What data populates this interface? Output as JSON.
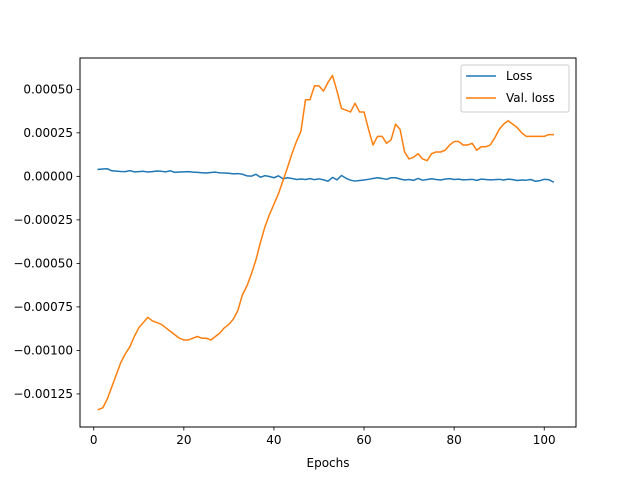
{
  "chart_data": {
    "type": "line",
    "title": "",
    "xlabel": "Epochs",
    "ylabel": "",
    "xlim": [
      -3.05,
      107.05
    ],
    "ylim": [
      -0.00144,
      0.00068
    ],
    "x_ticks": [
      0,
      20,
      40,
      60,
      80,
      100
    ],
    "x_tick_labels": [
      "0",
      "20",
      "40",
      "60",
      "80",
      "100"
    ],
    "y_ticks": [
      -0.00125,
      -0.001,
      -0.00075,
      -0.0005,
      -0.00025,
      0,
      0.00025,
      0.0005
    ],
    "y_tick_labels": [
      "−0.00125",
      "−0.00100",
      "−0.00075",
      "−0.00050",
      "−0.00025",
      "0.00000",
      "0.00025",
      "0.00050"
    ],
    "grid": false,
    "legend_position": "top-right",
    "series": [
      {
        "name": "Loss",
        "color": "#1f77b4",
        "x": [
          1,
          2,
          3,
          4,
          5,
          6,
          7,
          8,
          9,
          10,
          11,
          12,
          13,
          14,
          15,
          16,
          17,
          18,
          19,
          20,
          21,
          22,
          23,
          24,
          25,
          26,
          27,
          28,
          29,
          30,
          31,
          32,
          33,
          34,
          35,
          36,
          37,
          38,
          39,
          40,
          41,
          42,
          43,
          44,
          45,
          46,
          47,
          48,
          49,
          50,
          51,
          52,
          53,
          54,
          55,
          56,
          57,
          58,
          59,
          60,
          61,
          62,
          63,
          64,
          65,
          66,
          67,
          68,
          69,
          70,
          71,
          72,
          73,
          74,
          75,
          76,
          77,
          78,
          79,
          80,
          81,
          82,
          83,
          84,
          85,
          86,
          87,
          88,
          89,
          90,
          91,
          92,
          93,
          94,
          95,
          96,
          97,
          98,
          99,
          100,
          101,
          102
        ],
        "y": [
          4e-05,
          4.2e-05,
          4.4e-05,
          3.2e-05,
          3e-05,
          2.8e-05,
          2.7e-05,
          3.3e-05,
          2.6e-05,
          2.7e-05,
          2.9e-05,
          2.5e-05,
          2.7e-05,
          3.1e-05,
          2.9e-05,
          2.6e-05,
          3.2e-05,
          2.3e-05,
          2.5e-05,
          2.6e-05,
          2.7e-05,
          2.4e-05,
          2.3e-05,
          2.1e-05,
          1.9e-05,
          2.2e-05,
          2.4e-05,
          2e-05,
          1.9e-05,
          1.8e-05,
          1.4e-05,
          1.6e-05,
          1.2e-05,
          3e-06,
          1e-06,
          1.2e-05,
          -5e-06,
          4e-06,
          -1e-06,
          -8e-06,
          3e-06,
          -1.4e-05,
          -8e-06,
          -1.2e-05,
          -1.8e-05,
          -1.5e-05,
          -1.8e-05,
          -1.3e-05,
          -1.9e-05,
          -1.4e-05,
          -2e-05,
          -2.8e-05,
          -6e-06,
          -2e-05,
          5e-06,
          -1.1e-05,
          -2.2e-05,
          -2.7e-05,
          -2.4e-05,
          -2.1e-05,
          -1.7e-05,
          -1.2e-05,
          -8e-06,
          -1.2e-05,
          -1.7e-05,
          -8e-06,
          -8e-06,
          -1.5e-05,
          -2.1e-05,
          -1.8e-05,
          -2.3e-05,
          -1.2e-05,
          -2.2e-05,
          -1.8e-05,
          -1.4e-05,
          -1.8e-05,
          -2.1e-05,
          -1.6e-05,
          -1.3e-05,
          -1.8e-05,
          -1.6e-05,
          -2e-05,
          -1.9e-05,
          -1.7e-05,
          -2.3e-05,
          -1.6e-05,
          -1.8e-05,
          -2e-05,
          -1.9e-05,
          -1.7e-05,
          -2.1e-05,
          -1.6e-05,
          -1.9e-05,
          -2.4e-05,
          -2.1e-05,
          -2.2e-05,
          -1.8e-05,
          -2.8e-05,
          -2.5e-05,
          -1.7e-05,
          -1.9e-05,
          -3.2e-05
        ]
      },
      {
        "name": "Val. loss",
        "color": "#ff7f0e",
        "x": [
          1,
          2,
          3,
          4,
          5,
          6,
          7,
          8,
          9,
          10,
          11,
          12,
          13,
          14,
          15,
          16,
          17,
          18,
          19,
          20,
          21,
          22,
          23,
          24,
          25,
          26,
          27,
          28,
          29,
          30,
          31,
          32,
          33,
          34,
          35,
          36,
          37,
          38,
          39,
          40,
          41,
          42,
          43,
          44,
          45,
          46,
          47,
          48,
          49,
          50,
          51,
          52,
          53,
          54,
          55,
          56,
          57,
          58,
          59,
          60,
          61,
          62,
          63,
          64,
          65,
          66,
          67,
          68,
          69,
          70,
          71,
          72,
          73,
          74,
          75,
          76,
          77,
          78,
          79,
          80,
          81,
          82,
          83,
          84,
          85,
          86,
          87,
          88,
          89,
          90,
          91,
          92,
          93,
          94,
          95,
          96,
          97,
          98,
          99,
          100,
          101,
          102
        ],
        "y": [
          -0.00134,
          -0.00133,
          -0.00128,
          -0.00121,
          -0.00114,
          -0.00107,
          -0.00102,
          -0.00098,
          -0.00092,
          -0.00087,
          -0.00084,
          -0.00081,
          -0.00083,
          -0.00084,
          -0.00085,
          -0.00087,
          -0.00089,
          -0.00091,
          -0.00093,
          -0.00094,
          -0.00094,
          -0.00093,
          -0.00092,
          -0.00093,
          -0.00093,
          -0.00094,
          -0.00092,
          -0.0009,
          -0.00087,
          -0.00085,
          -0.00082,
          -0.00077,
          -0.00068,
          -0.00063,
          -0.00056,
          -0.00048,
          -0.00038,
          -0.00029,
          -0.00022,
          -0.00016,
          -0.0001,
          -2.5e-05,
          5e-05,
          0.00013,
          0.0002,
          0.00026,
          0.00044,
          0.00044,
          0.00052,
          0.00052,
          0.00049,
          0.00054,
          0.00058,
          0.00049,
          0.00039,
          0.00038,
          0.00037,
          0.00042,
          0.00037,
          0.00037,
          0.00027,
          0.00018,
          0.00023,
          0.00023,
          0.00019,
          0.00021,
          0.0003,
          0.00027,
          0.00014,
          0.0001,
          0.00011,
          0.00013,
          0.0001,
          9e-05,
          0.00013,
          0.00014,
          0.00014,
          0.00015,
          0.00018,
          0.0002,
          0.0002,
          0.00018,
          0.00018,
          0.00019,
          0.00015,
          0.00017,
          0.00017,
          0.00018,
          0.00022,
          0.00027,
          0.0003,
          0.00032,
          0.0003,
          0.00028,
          0.00025,
          0.00023,
          0.00023,
          0.00023,
          0.00023,
          0.00023,
          0.00024,
          0.00024
        ]
      }
    ]
  }
}
